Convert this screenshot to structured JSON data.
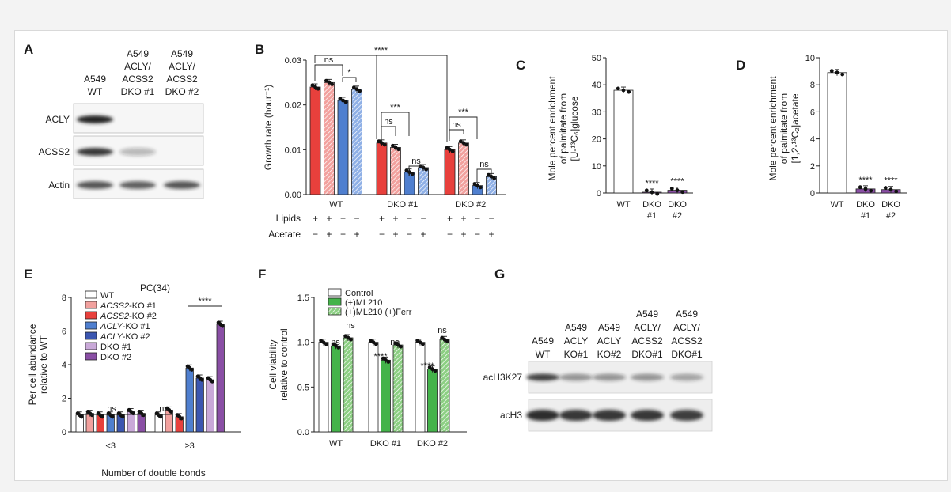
{
  "colors": {
    "wt": "#ffffff",
    "red": "#e8403c",
    "light_red": "#f2a19e",
    "blue": "#4f7fcf",
    "dark_blue": "#3b56b0",
    "light_purple": "#c9a9d8",
    "purple": "#8a4fa5",
    "green": "#44b34a",
    "light_green": "#a9dca2"
  },
  "panels": {
    "A": {
      "label": "A",
      "lanes": [
        [
          "A549",
          "WT"
        ],
        [
          "A549",
          "ACLY/",
          "ACSS2",
          "DKO #1"
        ],
        [
          "A549",
          "ACLY/",
          "ACSS2",
          "DKO #2"
        ]
      ],
      "rows": [
        "ACLY",
        "ACSS2",
        "Actin"
      ]
    },
    "B": {
      "label": "B"
    },
    "C": {
      "label": "C"
    },
    "D": {
      "label": "D"
    },
    "E": {
      "label": "E"
    },
    "F": {
      "label": "F"
    },
    "G": {
      "label": "G",
      "lanes": [
        [
          "A549",
          "WT"
        ],
        [
          "A549",
          "ACLY",
          "KO#1"
        ],
        [
          "A549",
          "ACLY",
          "KO#2"
        ],
        [
          "A549",
          "ACLY/",
          "ACSS2",
          "DKO#1"
        ],
        [
          "A549",
          "ACLY/",
          "ACSS2",
          "DKO#1"
        ]
      ],
      "rows": [
        "acH3K27",
        "acH3"
      ]
    }
  },
  "chart_data": [
    {
      "panel": "B",
      "type": "bar",
      "ylabel": "Growth rate (hour⁻¹)",
      "ylim": [
        0,
        0.03
      ],
      "yticks": [
        0.0,
        0.01,
        0.02,
        0.03
      ],
      "ytick_labels": [
        "0.00",
        "0.01",
        "0.02",
        "0.03"
      ],
      "groups": [
        "WT",
        "DKO #1",
        "DKO #2"
      ],
      "row_labels": [
        "Lipids",
        "Acetate"
      ],
      "lipids": [
        "+",
        "+",
        "−",
        "−"
      ],
      "acetate": [
        "−",
        "+",
        "−",
        "+"
      ],
      "values": [
        [
          0.024,
          0.025,
          0.021,
          0.0235
        ],
        [
          0.0115,
          0.0105,
          0.005,
          0.006
        ],
        [
          0.01,
          0.0115,
          0.002,
          0.004
        ]
      ],
      "annotations": [
        "ns",
        "*",
        "****",
        "***",
        "ns",
        "ns",
        "***",
        "ns"
      ]
    },
    {
      "panel": "C",
      "type": "bar",
      "ylabel": [
        "Mole percent enrichment",
        "of palmitate from",
        "[U-¹³C₆]glucose"
      ],
      "ylim": [
        0,
        50
      ],
      "yticks": [
        0,
        10,
        20,
        30,
        40,
        50
      ],
      "categories": [
        "WT",
        "DKO #1",
        "DKO #2"
      ],
      "values": [
        38,
        0.3,
        1.0
      ],
      "annotations": [
        "",
        "****",
        "****"
      ]
    },
    {
      "panel": "D",
      "type": "bar",
      "ylabel": [
        "Mole percent enrichment",
        "of palmitate from",
        "[1,2-¹³C₂]acetate"
      ],
      "ylim": [
        0,
        10
      ],
      "yticks": [
        0,
        2,
        4,
        6,
        8,
        10
      ],
      "categories": [
        "WT",
        "DKO #1",
        "DKO #2"
      ],
      "values": [
        8.9,
        0.3,
        0.25
      ],
      "annotations": [
        "",
        "****",
        "****"
      ]
    },
    {
      "panel": "E",
      "type": "bar",
      "title": "PC(34)",
      "ylabel": [
        "Per cell abundance",
        "relative to WT"
      ],
      "xlabel": "Number of double bonds",
      "ylim": [
        0,
        8
      ],
      "yticks": [
        0,
        2,
        4,
        6,
        8
      ],
      "categories": [
        "<3",
        "≥3"
      ],
      "legend": [
        "WT",
        "ACSS2-KO #1",
        "ACSS2-KO #2",
        "ACLY-KO #1",
        "ACLY-KO #2",
        "DKO #1",
        "DKO #2"
      ],
      "series": [
        {
          "name": "WT",
          "values": [
            1.0,
            1.0
          ]
        },
        {
          "name": "ACSS2-KO #1",
          "values": [
            1.1,
            1.3
          ]
        },
        {
          "name": "ACSS2-KO #2",
          "values": [
            1.0,
            0.9
          ]
        },
        {
          "name": "ACLY-KO #1",
          "values": [
            1.0,
            3.8
          ]
        },
        {
          "name": "ACLY-KO #2",
          "values": [
            1.0,
            3.2
          ]
        },
        {
          "name": "DKO #1",
          "values": [
            1.2,
            3.1
          ]
        },
        {
          "name": "DKO #2",
          "values": [
            1.1,
            6.4
          ]
        }
      ],
      "annotations": [
        "ns",
        "ns",
        "****"
      ]
    },
    {
      "panel": "F",
      "type": "bar",
      "ylabel": [
        "Cell viability",
        "relative to control"
      ],
      "ylim": [
        0,
        1.5
      ],
      "yticks": [
        0.0,
        0.5,
        1.0,
        1.5
      ],
      "ytick_labels": [
        "0.0",
        "0.5",
        "1.0",
        "1.5"
      ],
      "categories": [
        "WT",
        "DKO #1",
        "DKO #2"
      ],
      "legend": [
        "Control",
        "(+)ML210",
        "(+)ML210 (+)Ferr"
      ],
      "series": [
        {
          "name": "Control",
          "values": [
            1.0,
            1.0,
            1.0
          ]
        },
        {
          "name": "(+)ML210",
          "values": [
            0.96,
            0.8,
            0.7
          ]
        },
        {
          "name": "(+)ML210 (+)Ferr",
          "values": [
            1.05,
            0.97,
            1.03
          ]
        }
      ],
      "annotations": [
        "ns",
        "ns",
        "****",
        "ns",
        "****",
        "ns"
      ]
    }
  ]
}
